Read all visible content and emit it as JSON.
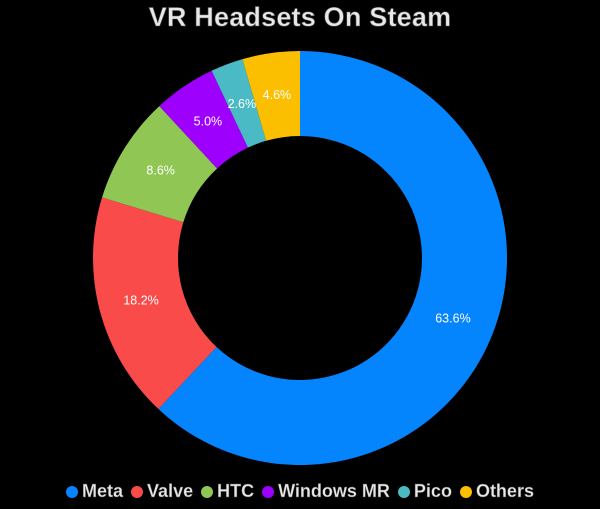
{
  "chart_data": {
    "type": "pie",
    "variant": "donut",
    "title": "VR Headsets On Steam",
    "categories": [
      "Meta",
      "Valve",
      "HTC",
      "Windows MR",
      "Pico",
      "Others"
    ],
    "values": [
      63.6,
      18.2,
      8.6,
      5.0,
      2.6,
      4.6
    ],
    "labels": [
      "63.6%",
      "18.2%",
      "8.6%",
      "5.0%",
      "2.6%",
      "4.6%"
    ],
    "colors": [
      "#0585fd",
      "#f94b4a",
      "#8fc654",
      "#9e00fd",
      "#4abac4",
      "#fcbf00"
    ],
    "start_angle": "12 o'clock",
    "direction": "clockwise",
    "legend_position": "bottom"
  },
  "title": "VR Headsets On Steam",
  "legend": [
    {
      "label": "Meta",
      "color": "#0585fd"
    },
    {
      "label": "Valve",
      "color": "#f94b4a"
    },
    {
      "label": "HTC",
      "color": "#8fc654"
    },
    {
      "label": "Windows MR",
      "color": "#9e00fd"
    },
    {
      "label": "Pico",
      "color": "#4abac4"
    },
    {
      "label": "Others",
      "color": "#fcbf00"
    }
  ]
}
